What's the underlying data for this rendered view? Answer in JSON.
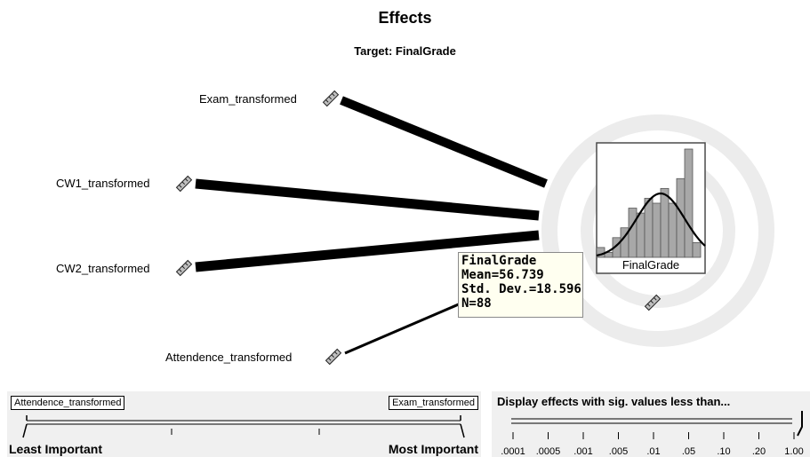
{
  "header": {
    "title": "Effects",
    "subtitle": "Target: FinalGrade"
  },
  "predictors": [
    {
      "label": "Exam_transformed",
      "icon": "ruler-icon"
    },
    {
      "label": "CW1_transformed",
      "icon": "ruler-icon"
    },
    {
      "label": "CW2_transformed",
      "icon": "ruler-icon"
    },
    {
      "label": "Attendence_transformed",
      "icon": "ruler-icon"
    }
  ],
  "target": {
    "label": "FinalGrade",
    "icon": "ruler-icon",
    "histogram": [
      2,
      1,
      4,
      6,
      10,
      9,
      12,
      11,
      14,
      11,
      16,
      22,
      3
    ]
  },
  "tooltip": {
    "title": "FinalGrade",
    "mean": "Mean=56.739",
    "std": "Std. Dev.=18.596",
    "n": "N=88"
  },
  "importance": {
    "left_label": "Attendence_transformed",
    "right_label": "Exam_transformed",
    "least": "Least Important",
    "most": "Most Important"
  },
  "significance": {
    "title": "Display effects with sig. values less than...",
    "ticks": [
      ".0001",
      ".0005",
      ".001",
      ".005",
      ".01",
      ".05",
      ".10",
      ".20",
      "1.00"
    ],
    "selected": "1.00"
  },
  "colors": {
    "edge": "#000000",
    "ring": "#ececec",
    "histogram_bar": "#a8a8a8",
    "panel": "#f0f0f0",
    "tooltip_bg": "#fffff0"
  }
}
